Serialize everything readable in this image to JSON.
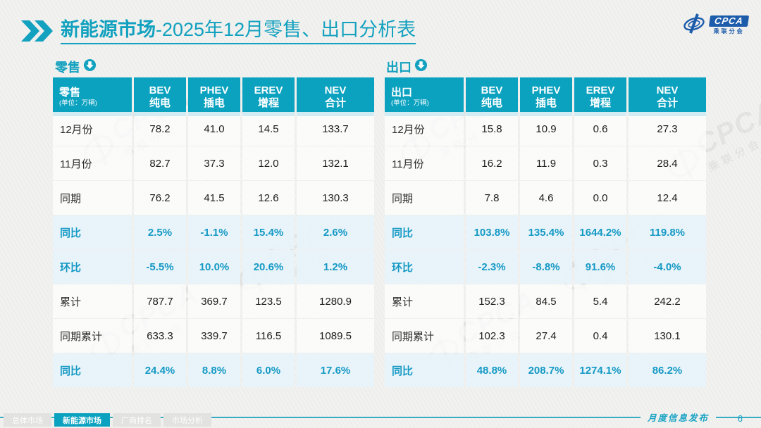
{
  "title": {
    "bold": "新能源市场",
    "rest": "-2025年12月零售、出口分析表"
  },
  "logo": {
    "name": "CPCA",
    "sub": "乘联分会"
  },
  "watermark": {
    "big": "CPCA",
    "sub": "乘联分会"
  },
  "icons": {
    "title_chevrons": "double-chevron-right",
    "section_arrow": "circle-down-arrow",
    "logo_swirl": "cpca-swoosh"
  },
  "colors": {
    "accent": "#0ba2c0",
    "highlight_bg": "#e7f3f9",
    "highlight_text": "#1599c5",
    "logo_blue": "#1d5cab"
  },
  "tables": [
    {
      "section_label": "零售",
      "corner_label": "零售",
      "corner_unit": "(单位：万辆)",
      "columns": [
        {
          "l1": "BEV",
          "l2": "纯电"
        },
        {
          "l1": "PHEV",
          "l2": "插电"
        },
        {
          "l1": "EREV",
          "l2": "增程"
        },
        {
          "l1": "NEV",
          "l2": "合计"
        }
      ],
      "rows": [
        {
          "label": "12月份",
          "values": [
            "78.2",
            "41.0",
            "14.5",
            "133.7"
          ],
          "highlight": false
        },
        {
          "label": "11月份",
          "values": [
            "82.7",
            "37.3",
            "12.0",
            "132.1"
          ],
          "highlight": false
        },
        {
          "label": "同期",
          "values": [
            "76.2",
            "41.5",
            "12.6",
            "130.3"
          ],
          "highlight": false
        },
        {
          "label": "同比",
          "values": [
            "2.5%",
            "-1.1%",
            "15.4%",
            "2.6%"
          ],
          "highlight": true
        },
        {
          "label": "环比",
          "values": [
            "-5.5%",
            "10.0%",
            "20.6%",
            "1.2%"
          ],
          "highlight": true
        },
        {
          "label": "累计",
          "values": [
            "787.7",
            "369.7",
            "123.5",
            "1280.9"
          ],
          "highlight": false
        },
        {
          "label": "同期累计",
          "values": [
            "633.3",
            "339.7",
            "116.5",
            "1089.5"
          ],
          "highlight": false
        },
        {
          "label": "同比",
          "values": [
            "24.4%",
            "8.8%",
            "6.0%",
            "17.6%"
          ],
          "highlight": true
        }
      ]
    },
    {
      "section_label": "出口",
      "corner_label": "出口",
      "corner_unit": "(单位：万辆)",
      "columns": [
        {
          "l1": "BEV",
          "l2": "纯电"
        },
        {
          "l1": "PHEV",
          "l2": "插电"
        },
        {
          "l1": "EREV",
          "l2": "增程"
        },
        {
          "l1": "NEV",
          "l2": "合计"
        }
      ],
      "rows": [
        {
          "label": "12月份",
          "values": [
            "15.8",
            "10.9",
            "0.6",
            "27.3"
          ],
          "highlight": false
        },
        {
          "label": "11月份",
          "values": [
            "16.2",
            "11.9",
            "0.3",
            "28.4"
          ],
          "highlight": false
        },
        {
          "label": "同期",
          "values": [
            "7.8",
            "4.6",
            "0.0",
            "12.4"
          ],
          "highlight": false
        },
        {
          "label": "同比",
          "values": [
            "103.8%",
            "135.4%",
            "1644.2%",
            "119.8%"
          ],
          "highlight": true
        },
        {
          "label": "环比",
          "values": [
            "-2.3%",
            "-8.8%",
            "91.6%",
            "-4.0%"
          ],
          "highlight": true
        },
        {
          "label": "累计",
          "values": [
            "152.3",
            "84.5",
            "5.4",
            "242.2"
          ],
          "highlight": false
        },
        {
          "label": "同期累计",
          "values": [
            "102.3",
            "27.4",
            "0.4",
            "130.1"
          ],
          "highlight": false
        },
        {
          "label": "同比",
          "values": [
            "48.8%",
            "208.7%",
            "1274.1%",
            "86.2%"
          ],
          "highlight": true
        }
      ]
    }
  ],
  "footer": {
    "tabs": [
      {
        "label": "总体市场",
        "active": false
      },
      {
        "label": "新能源市场",
        "active": true
      },
      {
        "label": "厂商排名",
        "active": false
      },
      {
        "label": "市场分析",
        "active": false
      }
    ],
    "publication": "月度信息发布",
    "page": "6"
  }
}
